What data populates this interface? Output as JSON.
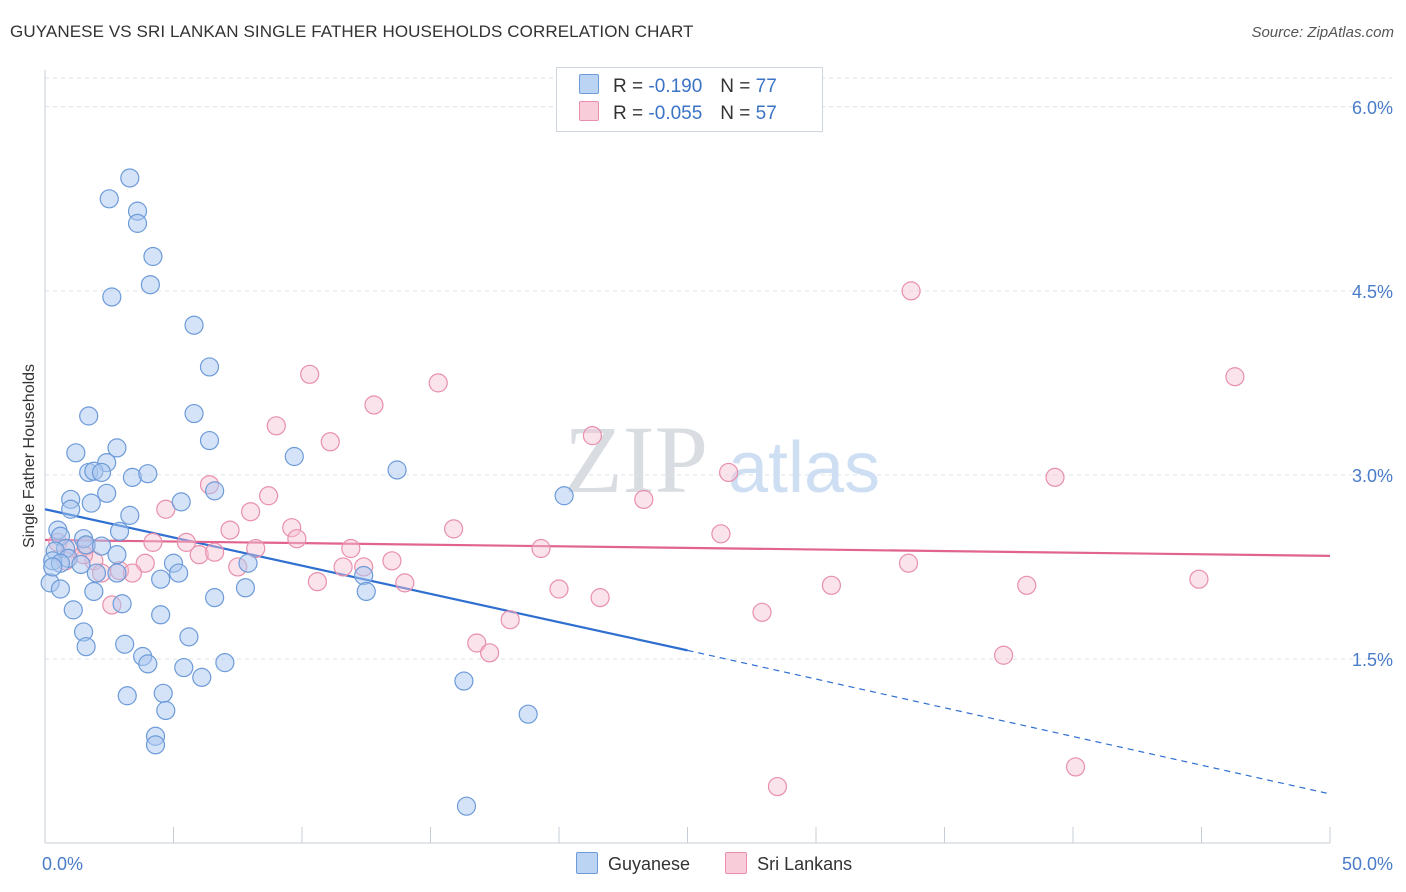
{
  "title": "GUYANESE VS SRI LANKAN SINGLE FATHER HOUSEHOLDS CORRELATION CHART",
  "source": "Source: ZipAtlas.com",
  "watermark": {
    "zip": "ZIP",
    "atlas": "atlas"
  },
  "legend": {
    "rows": [
      {
        "r_label": "R =",
        "r_value": "-0.190",
        "n_label": "N =",
        "n_value": "77"
      },
      {
        "r_label": "R =",
        "r_value": "-0.055",
        "n_label": "N =",
        "n_value": "57"
      }
    ]
  },
  "bottom_legend": {
    "series1": "Guyanese",
    "series2": "Sri Lankans"
  },
  "colors": {
    "guyanese_fill": "#a9c7ef",
    "guyanese_stroke": "#6d9bd9",
    "guyanese_line": "#2f6fd0",
    "srilankan_fill": "#f6c2d2",
    "srilankan_stroke": "#e88fac",
    "srilankan_line": "#e0648f",
    "grid": "#dde3ea",
    "axis_text": "#4a7cc9"
  },
  "chart_data": {
    "type": "scatter",
    "title": "GUYANESE VS SRI LANKAN SINGLE FATHER HOUSEHOLDS CORRELATION CHART",
    "xlabel": "",
    "ylabel": "Single Father Households",
    "xlim": [
      0,
      50
    ],
    "ylim": [
      0,
      6.3
    ],
    "x_tick_labels": [
      "0.0%",
      "50.0%"
    ],
    "y_ticks": [
      1.5,
      3.0,
      4.5,
      6.0
    ],
    "y_tick_labels": [
      "1.5%",
      "3.0%",
      "4.5%",
      "6.0%"
    ],
    "grid": true,
    "series": [
      {
        "name": "Guyanese",
        "R": -0.19,
        "N": 77,
        "trend": {
          "x0": 0,
          "y0": 2.72,
          "x1": 25,
          "y1": 1.57,
          "dashed_to_x": 50,
          "dashed_to_y": 0.4
        },
        "points": [
          [
            3.3,
            5.42
          ],
          [
            2.5,
            5.25
          ],
          [
            3.6,
            5.15
          ],
          [
            3.6,
            5.05
          ],
          [
            4.2,
            4.78
          ],
          [
            2.6,
            4.45
          ],
          [
            4.1,
            4.55
          ],
          [
            5.8,
            4.22
          ],
          [
            6.4,
            3.88
          ],
          [
            1.7,
            3.48
          ],
          [
            5.8,
            3.5
          ],
          [
            6.4,
            3.28
          ],
          [
            2.8,
            3.22
          ],
          [
            1.2,
            3.18
          ],
          [
            9.7,
            3.15
          ],
          [
            2.4,
            3.1
          ],
          [
            1.7,
            3.02
          ],
          [
            1.9,
            3.03
          ],
          [
            2.2,
            3.02
          ],
          [
            3.4,
            2.98
          ],
          [
            4.0,
            3.01
          ],
          [
            13.7,
            3.04
          ],
          [
            2.4,
            2.85
          ],
          [
            6.6,
            2.87
          ],
          [
            1.0,
            2.8
          ],
          [
            1.8,
            2.77
          ],
          [
            5.3,
            2.78
          ],
          [
            20.2,
            2.83
          ],
          [
            1.0,
            2.72
          ],
          [
            3.3,
            2.67
          ],
          [
            0.5,
            2.55
          ],
          [
            2.9,
            2.54
          ],
          [
            0.6,
            2.5
          ],
          [
            1.5,
            2.48
          ],
          [
            1.6,
            2.43
          ],
          [
            2.2,
            2.42
          ],
          [
            0.8,
            2.4
          ],
          [
            0.4,
            2.38
          ],
          [
            2.8,
            2.35
          ],
          [
            0.9,
            2.32
          ],
          [
            0.3,
            2.3
          ],
          [
            0.6,
            2.28
          ],
          [
            1.4,
            2.27
          ],
          [
            5.0,
            2.28
          ],
          [
            7.9,
            2.28
          ],
          [
            5.2,
            2.2
          ],
          [
            2.0,
            2.2
          ],
          [
            2.8,
            2.2
          ],
          [
            12.4,
            2.18
          ],
          [
            4.5,
            2.15
          ],
          [
            0.2,
            2.12
          ],
          [
            0.6,
            2.07
          ],
          [
            1.9,
            2.05
          ],
          [
            7.8,
            2.08
          ],
          [
            12.5,
            2.05
          ],
          [
            6.6,
            2.0
          ],
          [
            3.0,
            1.95
          ],
          [
            1.1,
            1.9
          ],
          [
            4.5,
            1.86
          ],
          [
            1.5,
            1.72
          ],
          [
            5.6,
            1.68
          ],
          [
            1.6,
            1.6
          ],
          [
            3.1,
            1.62
          ],
          [
            3.8,
            1.52
          ],
          [
            4.0,
            1.46
          ],
          [
            7.0,
            1.47
          ],
          [
            5.4,
            1.43
          ],
          [
            6.1,
            1.35
          ],
          [
            16.3,
            1.32
          ],
          [
            4.6,
            1.22
          ],
          [
            3.2,
            1.2
          ],
          [
            4.7,
            1.08
          ],
          [
            18.8,
            1.05
          ],
          [
            4.3,
            0.87
          ],
          [
            4.3,
            0.8
          ],
          [
            16.4,
            0.3
          ],
          [
            0.3,
            2.25
          ]
        ]
      },
      {
        "name": "Sri Lankans",
        "R": -0.055,
        "N": 57,
        "trend": {
          "x0": 0,
          "y0": 2.47,
          "x1": 50,
          "y1": 2.34
        },
        "points": [
          [
            33.7,
            4.5
          ],
          [
            10.3,
            3.82
          ],
          [
            46.3,
            3.8
          ],
          [
            15.3,
            3.75
          ],
          [
            12.8,
            3.57
          ],
          [
            9.0,
            3.4
          ],
          [
            11.1,
            3.27
          ],
          [
            21.3,
            3.32
          ],
          [
            26.6,
            3.02
          ],
          [
            39.3,
            2.98
          ],
          [
            6.4,
            2.92
          ],
          [
            8.7,
            2.83
          ],
          [
            23.3,
            2.8
          ],
          [
            4.7,
            2.72
          ],
          [
            8.0,
            2.7
          ],
          [
            9.6,
            2.57
          ],
          [
            7.2,
            2.55
          ],
          [
            15.9,
            2.56
          ],
          [
            26.3,
            2.52
          ],
          [
            5.5,
            2.45
          ],
          [
            9.8,
            2.48
          ],
          [
            0.5,
            2.45
          ],
          [
            1.6,
            2.42
          ],
          [
            1.0,
            2.4
          ],
          [
            8.2,
            2.4
          ],
          [
            11.9,
            2.4
          ],
          [
            19.3,
            2.4
          ],
          [
            6.0,
            2.35
          ],
          [
            6.6,
            2.37
          ],
          [
            1.9,
            2.3
          ],
          [
            13.5,
            2.3
          ],
          [
            33.6,
            2.28
          ],
          [
            3.9,
            2.28
          ],
          [
            11.6,
            2.25
          ],
          [
            12.4,
            2.25
          ],
          [
            7.5,
            2.25
          ],
          [
            2.9,
            2.22
          ],
          [
            2.2,
            2.2
          ],
          [
            3.4,
            2.2
          ],
          [
            44.9,
            2.15
          ],
          [
            10.6,
            2.13
          ],
          [
            14.0,
            2.12
          ],
          [
            30.6,
            2.1
          ],
          [
            38.2,
            2.1
          ],
          [
            20.0,
            2.07
          ],
          [
            21.6,
            2.0
          ],
          [
            2.6,
            1.94
          ],
          [
            27.9,
            1.88
          ],
          [
            18.1,
            1.82
          ],
          [
            16.8,
            1.63
          ],
          [
            17.3,
            1.55
          ],
          [
            37.3,
            1.53
          ],
          [
            40.1,
            0.62
          ],
          [
            28.5,
            0.46
          ],
          [
            1.5,
            2.35
          ],
          [
            0.8,
            2.3
          ],
          [
            4.2,
            2.45
          ]
        ]
      }
    ]
  }
}
